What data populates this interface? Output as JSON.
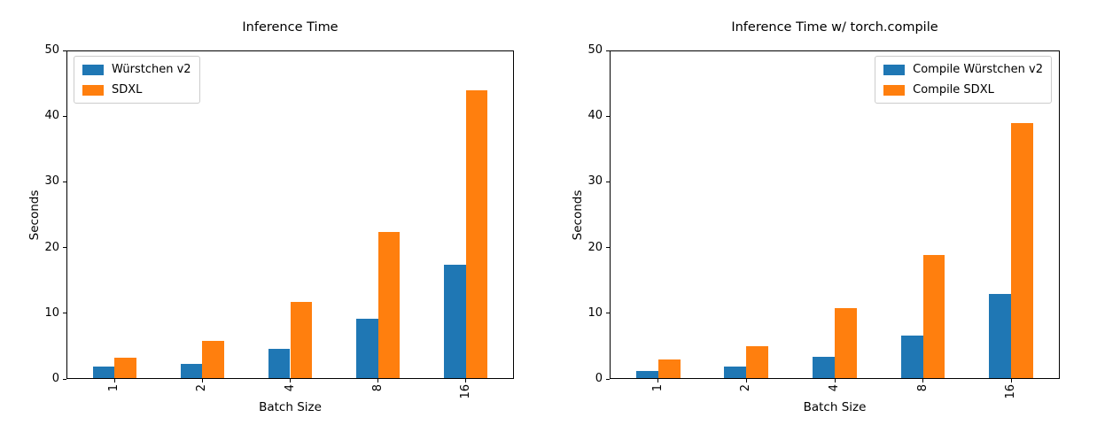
{
  "figure": {
    "background": "#ffffff"
  },
  "chart_data": [
    {
      "type": "bar",
      "title": "Inference Time",
      "xlabel": "Batch Size",
      "ylabel": "Seconds",
      "categories": [
        "1",
        "2",
        "4",
        "8",
        "16"
      ],
      "series": [
        {
          "name": "Würstchen v2",
          "color": "#1f77b4",
          "values": [
            1.9,
            2.3,
            4.6,
            9.1,
            17.4
          ]
        },
        {
          "name": "SDXL",
          "color": "#ff7f0e",
          "values": [
            3.3,
            5.8,
            11.7,
            22.4,
            44.0
          ]
        }
      ],
      "ylim": [
        0,
        50
      ],
      "yticks": [
        0,
        10,
        20,
        30,
        40,
        50
      ],
      "grid": false,
      "legend_position": "top-left"
    },
    {
      "type": "bar",
      "title": "Inference Time w/ torch.compile",
      "xlabel": "Batch Size",
      "ylabel": "Seconds",
      "categories": [
        "1",
        "2",
        "4",
        "8",
        "16"
      ],
      "series": [
        {
          "name": "Compile Würstchen v2",
          "color": "#1f77b4",
          "values": [
            1.2,
            1.9,
            3.4,
            6.6,
            12.9
          ]
        },
        {
          "name": "Compile SDXL",
          "color": "#ff7f0e",
          "values": [
            2.9,
            5.0,
            10.8,
            18.9,
            39.0
          ]
        }
      ],
      "ylim": [
        0,
        50
      ],
      "yticks": [
        0,
        10,
        20,
        30,
        40,
        50
      ],
      "grid": false,
      "legend_position": "top-right"
    }
  ]
}
